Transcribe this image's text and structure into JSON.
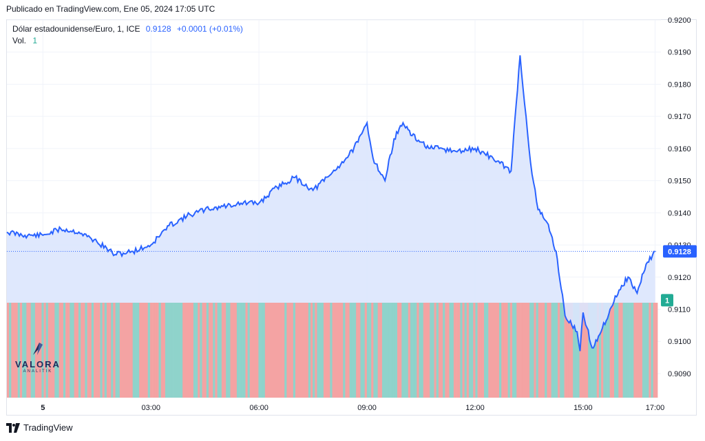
{
  "header": {
    "published": "Publicado en TradingView.com, Ene 05, 2024 17:05 UTC"
  },
  "legend": {
    "symbol": "Dólar estadounidense/Euro, 1, ICE",
    "last": "0.9128",
    "change": "+0.0001 (+0.01%)",
    "vol_label": "Vol.",
    "vol_value": "1"
  },
  "price_badge": "0.9128",
  "volume_badge": "1",
  "watermark": {
    "name": "VALORA",
    "sub": "ANALITIK"
  },
  "footer": {
    "brand": "TradingView"
  },
  "colors": {
    "line": "#2962ff",
    "area": "#dce6fd",
    "vol_up": "#8fd3cb",
    "vol_down": "#f4a3a3",
    "badge": "#2962ff",
    "vol_badge": "#22ab94"
  },
  "chart_data": {
    "type": "area",
    "title": "Dólar estadounidense/Euro, 1, ICE",
    "y_ticks": [
      "0.9200",
      "0.9190",
      "0.9180",
      "0.9170",
      "0.9160",
      "0.9150",
      "0.9140",
      "0.9130",
      "0.9120",
      "0.9110",
      "0.9100",
      "0.9090"
    ],
    "x_ticks": [
      "5",
      "03:00",
      "06:00",
      "09:00",
      "12:00",
      "15:00",
      "17:00"
    ],
    "ylim": [
      0.90825,
      0.92
    ],
    "grid": true,
    "series": [
      {
        "x": [
          "23:00",
          "23:30",
          "00:00",
          "00:30",
          "01:00",
          "01:30",
          "02:00",
          "02:30",
          "03:00",
          "03:30",
          "04:00",
          "04:30",
          "05:00",
          "05:30",
          "06:00",
          "06:30",
          "07:00",
          "07:30",
          "08:00",
          "08:30",
          "08:45",
          "09:00",
          "09:10",
          "09:30",
          "09:45",
          "10:00",
          "10:15",
          "10:30",
          "10:45",
          "11:00",
          "11:30",
          "12:00",
          "12:30",
          "13:00",
          "13:15",
          "13:25",
          "13:30",
          "13:35",
          "13:45",
          "14:00",
          "14:15",
          "14:30",
          "14:50",
          "14:55",
          "15:00",
          "15:15",
          "15:30",
          "15:45",
          "16:00",
          "16:15",
          "16:30",
          "16:45",
          "17:00"
        ],
        "y": [
          0.9134,
          0.9133,
          0.9133,
          0.9135,
          0.9134,
          0.9131,
          0.9127,
          0.9128,
          0.913,
          0.9136,
          0.9139,
          0.9141,
          0.9142,
          0.9143,
          0.9143,
          0.9148,
          0.9151,
          0.9147,
          0.9152,
          0.9158,
          0.9162,
          0.9168,
          0.9157,
          0.915,
          0.9163,
          0.9168,
          0.9164,
          0.9162,
          0.916,
          0.916,
          0.9159,
          0.916,
          0.9157,
          0.9153,
          0.9189,
          0.917,
          0.916,
          0.9152,
          0.9141,
          0.9137,
          0.9128,
          0.9108,
          0.9103,
          0.9097,
          0.9109,
          0.9098,
          0.9103,
          0.911,
          0.9116,
          0.912,
          0.9115,
          0.9124,
          0.9128
        ]
      }
    ]
  }
}
